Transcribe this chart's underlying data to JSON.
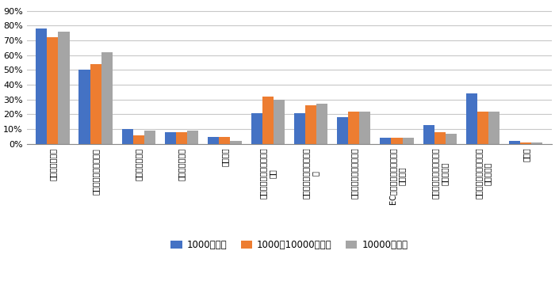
{
  "categories": [
    "燃油価格の高騰",
    "人材不足・人件費高騰",
    "積載効率の低下",
    "輸送頻度の増加",
    "過剰在庫",
    "高騰",
    "響",
    "ロシア・ウクライナ紛争",
    "ロット化",
    "ダンピング",
    "る効率悪化",
    "その他"
  ],
  "categories_display": [
    "燃油価格の高騰",
    "人材不足・人件費高騰",
    "積載効率の低下",
    "輸送頻度の増加",
    "過剰在庫",
    "電気などのインフラ費の\n高騰",
    "新型コロナウィルスの影\n響",
    "ロシア・ウクライナ紛争",
    "ECの普及による多品種小\nロット化",
    "荷主・発注元からの価格\nダンピング",
    "ドライバーの高齢化によ\nる効率悪化",
    "その他"
  ],
  "series": {
    "1000人未満": [
      78,
      50,
      10,
      8,
      5,
      21,
      21,
      18,
      4,
      13,
      34,
      2
    ],
    "1000～10000人未満": [
      72,
      54,
      6,
      8,
      5,
      32,
      26,
      22,
      4,
      8,
      22,
      1
    ],
    "10000人以上": [
      76,
      62,
      9,
      9,
      2,
      30,
      27,
      22,
      4,
      7,
      22,
      1
    ]
  },
  "colors": {
    "1000人未満": "#4472c4",
    "1000～10000人未満": "#ed7d31",
    "10000人以上": "#a5a5a5"
  },
  "legend_labels": [
    "1000人未満",
    "1000～10000人未満",
    "10000人以上"
  ],
  "yticks": [
    0,
    10,
    20,
    30,
    40,
    50,
    60,
    70,
    80,
    90
  ],
  "ytick_labels": [
    "0%",
    "10%",
    "20%",
    "30%",
    "40%",
    "50%",
    "60%",
    "70%",
    "80%",
    "90%"
  ],
  "ylim": [
    0,
    95
  ],
  "background_color": "#ffffff",
  "grid_color": "#c8c8c8"
}
